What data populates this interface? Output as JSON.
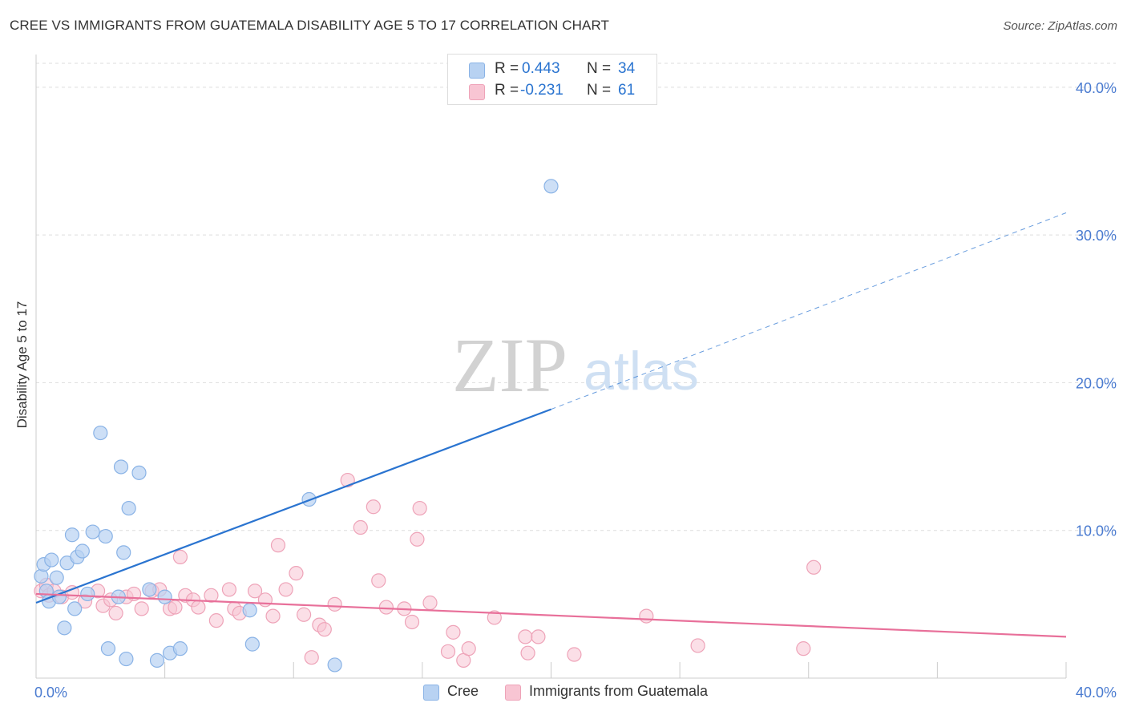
{
  "colors": {
    "cree_fill": "#b8d2f2",
    "cree_stroke": "#8ab3e6",
    "cree_line": "#2a74d0",
    "guat_fill": "#f8c5d3",
    "guat_stroke": "#eea3b8",
    "guat_line": "#e8709a",
    "axis_text": "#4a7bd0",
    "grid": "#dddddd"
  },
  "header": {
    "title": "CREE VS IMMIGRANTS FROM GUATEMALA DISABILITY AGE 5 TO 17 CORRELATION CHART",
    "source": "Source: ZipAtlas.com"
  },
  "watermark": {
    "zip": "ZIP",
    "atlas": "atlas"
  },
  "legend": {
    "rows": [
      {
        "r_label": "R =",
        "r_value": "0.443",
        "n_label": "N =",
        "n_value": "34"
      },
      {
        "r_label": "R =",
        "r_value": "-0.231",
        "n_label": "N =",
        "n_value": "61"
      }
    ]
  },
  "bottom_legend": {
    "cree": "Cree",
    "guatemala": "Immigrants from Guatemala"
  },
  "chart_data": {
    "type": "scatter",
    "title": "CREE VS IMMIGRANTS FROM GUATEMALA DISABILITY AGE 5 TO 17 CORRELATION CHART",
    "xlabel": "",
    "ylabel": "Disability Age 5 to 17",
    "xlim": [
      0,
      40
    ],
    "ylim": [
      0,
      42
    ],
    "x_ticks": [
      {
        "value": 0,
        "label": "0.0%"
      },
      {
        "value": 40,
        "label": "40.0%"
      }
    ],
    "y_ticks": [
      {
        "value": 10,
        "label": "10.0%"
      },
      {
        "value": 20,
        "label": "20.0%"
      },
      {
        "value": 30,
        "label": "30.0%"
      },
      {
        "value": 40,
        "label": "40.0%"
      }
    ],
    "series": [
      {
        "name": "Cree",
        "R": 0.443,
        "N": 34,
        "trend": {
          "x0": 0,
          "y0": 5.1,
          "x1": 20,
          "y1": 18.2,
          "dashed_to_x": 40,
          "dashed_to_y": 31.5
        },
        "points": [
          [
            0.2,
            6.9
          ],
          [
            0.3,
            7.7
          ],
          [
            0.4,
            5.9
          ],
          [
            0.5,
            5.2
          ],
          [
            0.6,
            8.0
          ],
          [
            0.8,
            6.8
          ],
          [
            0.9,
            5.5
          ],
          [
            1.1,
            3.4
          ],
          [
            1.2,
            7.8
          ],
          [
            1.4,
            9.7
          ],
          [
            1.5,
            4.7
          ],
          [
            1.6,
            8.2
          ],
          [
            1.8,
            8.6
          ],
          [
            2.0,
            5.7
          ],
          [
            2.2,
            9.9
          ],
          [
            2.5,
            16.6
          ],
          [
            2.7,
            9.6
          ],
          [
            2.8,
            2.0
          ],
          [
            3.2,
            5.5
          ],
          [
            3.4,
            8.5
          ],
          [
            3.5,
            1.3
          ],
          [
            3.6,
            11.5
          ],
          [
            3.3,
            14.3
          ],
          [
            4.0,
            13.9
          ],
          [
            4.4,
            6.0
          ],
          [
            4.7,
            1.2
          ],
          [
            5.0,
            5.5
          ],
          [
            5.2,
            1.7
          ],
          [
            5.6,
            2.0
          ],
          [
            8.3,
            4.6
          ],
          [
            8.4,
            2.3
          ],
          [
            10.6,
            12.1
          ],
          [
            11.6,
            0.9
          ],
          [
            20.0,
            33.3
          ]
        ]
      },
      {
        "name": "Immigrants from Guatemala",
        "R": -0.231,
        "N": 61,
        "trend": {
          "x0": 0,
          "y0": 5.7,
          "x1": 40,
          "y1": 2.8
        },
        "points": [
          [
            0.2,
            5.9
          ],
          [
            0.4,
            6.3
          ],
          [
            0.5,
            5.6
          ],
          [
            0.7,
            5.9
          ],
          [
            1.0,
            5.5
          ],
          [
            1.4,
            5.8
          ],
          [
            1.9,
            5.2
          ],
          [
            2.4,
            5.9
          ],
          [
            2.6,
            4.9
          ],
          [
            2.9,
            5.3
          ],
          [
            3.1,
            4.4
          ],
          [
            3.5,
            5.5
          ],
          [
            3.8,
            5.7
          ],
          [
            4.1,
            4.7
          ],
          [
            4.5,
            5.9
          ],
          [
            4.8,
            6.0
          ],
          [
            5.2,
            4.7
          ],
          [
            5.4,
            4.8
          ],
          [
            5.6,
            8.2
          ],
          [
            5.8,
            5.6
          ],
          [
            6.1,
            5.3
          ],
          [
            6.3,
            4.8
          ],
          [
            6.8,
            5.6
          ],
          [
            7.0,
            3.9
          ],
          [
            7.5,
            6.0
          ],
          [
            7.7,
            4.7
          ],
          [
            7.9,
            4.4
          ],
          [
            8.5,
            5.9
          ],
          [
            8.9,
            5.3
          ],
          [
            9.2,
            4.2
          ],
          [
            9.4,
            9.0
          ],
          [
            9.7,
            6.0
          ],
          [
            10.1,
            7.1
          ],
          [
            10.4,
            4.3
          ],
          [
            10.7,
            1.4
          ],
          [
            11.0,
            3.6
          ],
          [
            11.2,
            3.3
          ],
          [
            11.6,
            5.0
          ],
          [
            12.1,
            13.4
          ],
          [
            12.6,
            10.2
          ],
          [
            13.1,
            11.6
          ],
          [
            13.3,
            6.6
          ],
          [
            13.6,
            4.8
          ],
          [
            14.3,
            4.7
          ],
          [
            14.6,
            3.8
          ],
          [
            14.9,
            11.5
          ],
          [
            14.8,
            9.4
          ],
          [
            15.3,
            5.1
          ],
          [
            16.0,
            1.8
          ],
          [
            16.2,
            3.1
          ],
          [
            16.6,
            1.2
          ],
          [
            16.8,
            2.0
          ],
          [
            17.8,
            4.1
          ],
          [
            19.0,
            2.8
          ],
          [
            19.1,
            1.7
          ],
          [
            19.5,
            2.8
          ],
          [
            20.9,
            1.6
          ],
          [
            23.7,
            4.2
          ],
          [
            25.7,
            2.2
          ],
          [
            29.8,
            2.0
          ],
          [
            30.2,
            7.5
          ]
        ]
      }
    ]
  }
}
